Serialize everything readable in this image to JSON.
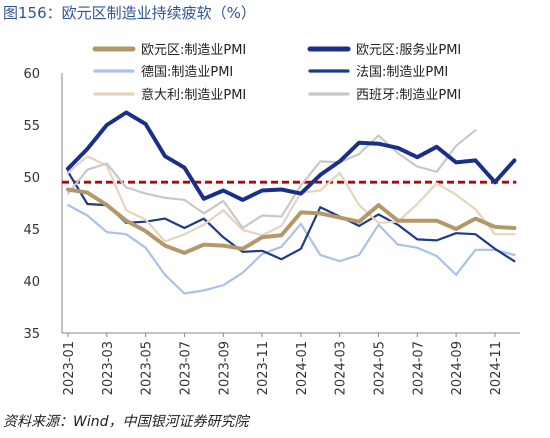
{
  "figure": {
    "title": "图156：欧元区制造业持续疲软（%）",
    "source": "资料来源：Wind，中国银河证券研究院"
  },
  "chart_data": {
    "type": "line",
    "ylim": [
      35,
      60
    ],
    "yticks": [
      35,
      40,
      45,
      50,
      55,
      60
    ],
    "x": [
      "2023-01",
      "2023-02",
      "2023-03",
      "2023-04",
      "2023-05",
      "2023-06",
      "2023-07",
      "2023-08",
      "2023-09",
      "2023-10",
      "2023-11",
      "2023-12",
      "2024-01",
      "2024-02",
      "2024-03",
      "2024-04",
      "2024-05",
      "2024-06",
      "2024-07",
      "2024-08",
      "2024-09",
      "2024-10",
      "2024-11",
      "2024-12"
    ],
    "xtick_labels": [
      "2023-01",
      "2023-03",
      "2023-05",
      "2023-07",
      "2023-09",
      "2023-11",
      "2024-01",
      "2024-03",
      "2024-05",
      "2024-07",
      "2024-09",
      "2024-11"
    ],
    "grid": false,
    "legend_position": "top",
    "reference_line": {
      "value": 49.5,
      "style": "dashed",
      "color": "#c00000"
    },
    "series": [
      {
        "name": "欧元区:制造业PMI",
        "color": "#b5986a",
        "width": 4,
        "values": [
          48.8,
          48.5,
          47.3,
          45.8,
          44.8,
          43.4,
          42.7,
          43.5,
          43.4,
          43.1,
          44.2,
          44.4,
          46.6,
          46.5,
          46.1,
          45.7,
          47.3,
          45.8,
          45.8,
          45.8,
          45.0,
          46.0,
          45.2,
          45.1
        ]
      },
      {
        "name": "欧元区:服务业PMI",
        "color": "#1a2f8a",
        "width": 4,
        "values": [
          50.8,
          52.7,
          55.0,
          56.2,
          55.1,
          52.0,
          50.9,
          47.9,
          48.7,
          47.8,
          48.7,
          48.8,
          48.4,
          50.2,
          51.5,
          53.3,
          53.2,
          52.8,
          51.9,
          52.9,
          51.4,
          51.6,
          49.5,
          51.6
        ]
      },
      {
        "name": "德国:制造业PMI",
        "color": "#a9c2e6",
        "width": 2.2,
        "values": [
          47.3,
          46.3,
          44.7,
          44.5,
          43.2,
          40.6,
          38.8,
          39.1,
          39.6,
          40.8,
          42.6,
          43.3,
          45.5,
          42.5,
          41.9,
          42.5,
          45.4,
          43.5,
          43.2,
          42.4,
          40.6,
          43.0,
          43.0,
          42.5
        ]
      },
      {
        "name": "法国:制造业PMI",
        "color": "#1e3a8a",
        "width": 2.2,
        "values": [
          50.5,
          47.4,
          47.3,
          45.6,
          45.7,
          46.0,
          45.1,
          46.0,
          44.2,
          42.8,
          42.9,
          42.1,
          43.1,
          47.1,
          46.2,
          45.3,
          46.4,
          45.4,
          44.0,
          43.9,
          44.6,
          44.5,
          43.1,
          41.9
        ]
      },
      {
        "name": "意大利:制造业PMI",
        "color": "#e7d4bc",
        "width": 2.2,
        "values": [
          50.4,
          52.0,
          51.1,
          46.8,
          45.9,
          43.8,
          44.5,
          45.4,
          46.8,
          44.9,
          44.4,
          45.3,
          48.5,
          48.7,
          50.4,
          47.3,
          45.6,
          45.7,
          47.4,
          49.4,
          48.3,
          46.9,
          44.5,
          44.5
        ]
      },
      {
        "name": "西班牙:制造业PMI",
        "color": "#c8c8c8",
        "width": 2.2,
        "values": [
          48.4,
          50.7,
          51.3,
          49.0,
          48.4,
          48.0,
          47.8,
          46.5,
          47.7,
          45.1,
          46.3,
          46.2,
          49.2,
          51.5,
          51.4,
          52.2,
          54.0,
          52.3,
          51.0,
          50.5,
          53.0,
          54.5,
          null,
          null
        ]
      }
    ]
  }
}
